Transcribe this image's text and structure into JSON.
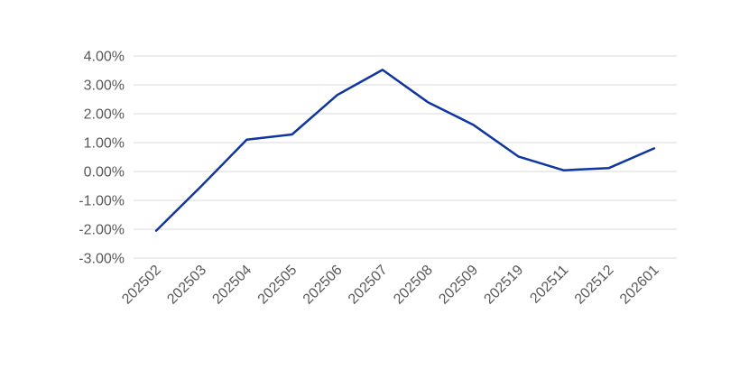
{
  "chart_data": {
    "type": "line",
    "title": "",
    "xlabel": "",
    "ylabel": "",
    "categories": [
      "202502",
      "202503",
      "202504",
      "202505",
      "202506",
      "202507",
      "202508",
      "202509",
      "202519",
      "202511",
      "202512",
      "202601"
    ],
    "series": [
      {
        "values": [
          -2.05,
          -0.5,
          1.1,
          1.28,
          2.65,
          3.52,
          2.4,
          1.62,
          0.52,
          0.04,
          0.12,
          0.8
        ],
        "color": "#0f35a0"
      }
    ],
    "ylim": [
      -3,
      4
    ],
    "y_ticks": [
      4,
      3,
      2,
      1,
      0,
      -1,
      -2,
      -3
    ],
    "y_tick_labels": [
      "4.00%",
      "3.00%",
      "2.00%",
      "1.00%",
      "0.00%",
      "-1.00%",
      "-2.00%",
      "-3.00%"
    ],
    "grid": true,
    "legend": "none"
  }
}
